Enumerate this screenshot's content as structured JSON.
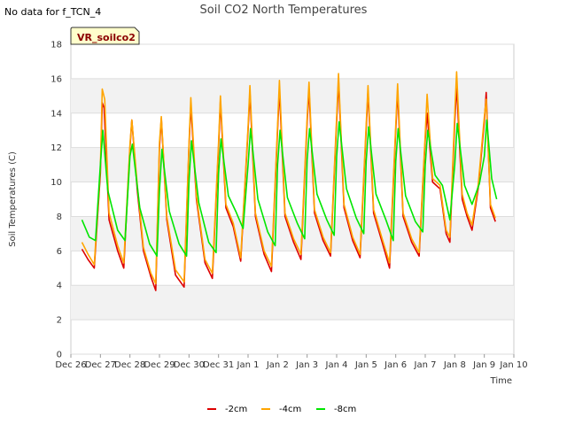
{
  "no_data_note": "No data for f_TCN_4",
  "chart_data": {
    "type": "line",
    "title": "Soil CO2 North Temperatures",
    "xlabel": "Time",
    "ylabel": "Soil Temperatures (C)",
    "ylim": [
      0,
      18
    ],
    "yticks": [
      0,
      2,
      4,
      6,
      8,
      10,
      12,
      14,
      16,
      18
    ],
    "xlim": [
      "2023-12-26",
      "2024-01-10"
    ],
    "xticks": [
      "Dec 26",
      "Dec 27",
      "Dec 28",
      "Dec 29",
      "Dec 30",
      "Dec 31",
      "Jan 1",
      "Jan 2",
      "Jan 3",
      "Jan 4",
      "Jan 5",
      "Jan 6",
      "Jan 7",
      "Jan 8",
      "Jan 9",
      "Jan 10"
    ],
    "site_label": "VR_soilco2",
    "grid": "horizontal bands",
    "legend_position": "bottom-center",
    "series": [
      {
        "name": "-2cm",
        "color": "#dd0000",
        "points": [
          [
            "2023-12-26 09:00",
            6.1
          ],
          [
            "2023-12-26 14:00",
            5.5
          ],
          [
            "2023-12-26 19:00",
            5.0
          ],
          [
            "2023-12-27 00:00",
            10.5
          ],
          [
            "2023-12-27 01:30",
            14.6
          ],
          [
            "2023-12-27 03:00",
            14.3
          ],
          [
            "2023-12-27 07:00",
            7.8
          ],
          [
            "2023-12-27 14:00",
            6.0
          ],
          [
            "2023-12-27 19:00",
            5.0
          ],
          [
            "2023-12-28 00:00",
            12.0
          ],
          [
            "2023-12-28 01:30",
            13.6
          ],
          [
            "2023-12-28 06:00",
            9.5
          ],
          [
            "2023-12-28 11:00",
            6.0
          ],
          [
            "2023-12-28 17:00",
            4.5
          ],
          [
            "2023-12-28 21:00",
            3.7
          ],
          [
            "2023-12-29 00:00",
            12.0
          ],
          [
            "2023-12-29 01:30",
            13.7
          ],
          [
            "2023-12-29 06:00",
            7.8
          ],
          [
            "2023-12-29 13:00",
            4.6
          ],
          [
            "2023-12-29 20:00",
            3.9
          ],
          [
            "2023-12-30 00:00",
            12.0
          ],
          [
            "2023-12-30 01:30",
            14.5
          ],
          [
            "2023-12-30 06:00",
            9.0
          ],
          [
            "2023-12-30 13:00",
            5.3
          ],
          [
            "2023-12-30 19:00",
            4.4
          ],
          [
            "2023-12-31 00:00",
            12.0
          ],
          [
            "2023-12-31 01:30",
            14.7
          ],
          [
            "2023-12-31 06:00",
            8.5
          ],
          [
            "2023-12-31 12:00",
            7.4
          ],
          [
            "2023-12-31 18:00",
            5.4
          ],
          [
            "2024-01-01 00:00",
            13.0
          ],
          [
            "2024-01-01 01:30",
            15.2
          ],
          [
            "2024-01-01 06:00",
            8.0
          ],
          [
            "2024-01-01 13:00",
            5.8
          ],
          [
            "2024-01-01 19:00",
            4.8
          ],
          [
            "2024-01-02 00:00",
            13.0
          ],
          [
            "2024-01-02 01:30",
            15.4
          ],
          [
            "2024-01-02 06:00",
            8.0
          ],
          [
            "2024-01-02 13:00",
            6.5
          ],
          [
            "2024-01-02 19:00",
            5.5
          ],
          [
            "2024-01-03 00:00",
            13.5
          ],
          [
            "2024-01-03 01:30",
            15.4
          ],
          [
            "2024-01-03 06:00",
            8.2
          ],
          [
            "2024-01-03 13:00",
            6.6
          ],
          [
            "2024-01-03 19:00",
            5.7
          ],
          [
            "2024-01-04 00:00",
            13.5
          ],
          [
            "2024-01-04 01:30",
            15.9
          ],
          [
            "2024-01-04 06:00",
            8.5
          ],
          [
            "2024-01-04 13:00",
            6.6
          ],
          [
            "2024-01-04 19:00",
            5.6
          ],
          [
            "2024-01-05 00:00",
            13.0
          ],
          [
            "2024-01-05 01:30",
            15.3
          ],
          [
            "2024-01-05 06:00",
            8.2
          ],
          [
            "2024-01-05 13:00",
            6.5
          ],
          [
            "2024-01-05 19:00",
            5.0
          ],
          [
            "2024-01-06 00:00",
            13.0
          ],
          [
            "2024-01-06 01:30",
            15.3
          ],
          [
            "2024-01-06 06:00",
            8.0
          ],
          [
            "2024-01-06 13:00",
            6.5
          ],
          [
            "2024-01-06 19:00",
            5.7
          ],
          [
            "2024-01-07 00:00",
            12.5
          ],
          [
            "2024-01-07 01:30",
            14.0
          ],
          [
            "2024-01-07 06:00",
            10.0
          ],
          [
            "2024-01-07 12:00",
            9.6
          ],
          [
            "2024-01-07 17:00",
            7.0
          ],
          [
            "2024-01-07 20:00",
            6.5
          ],
          [
            "2024-01-08 00:00",
            13.5
          ],
          [
            "2024-01-08 01:30",
            15.6
          ],
          [
            "2024-01-08 06:00",
            9.0
          ],
          [
            "2024-01-08 10:00",
            8.0
          ],
          [
            "2024-01-08 14:00",
            7.2
          ],
          [
            "2024-01-08 19:00",
            9.6
          ],
          [
            "2024-01-09 00:00",
            13.5
          ],
          [
            "2024-01-09 01:30",
            15.2
          ],
          [
            "2024-01-09 05:00",
            8.5
          ],
          [
            "2024-01-09 09:00",
            7.7
          ]
        ]
      },
      {
        "name": "-4cm",
        "color": "#ffa500",
        "points": [
          [
            "2023-12-26 09:00",
            6.5
          ],
          [
            "2023-12-26 14:00",
            5.8
          ],
          [
            "2023-12-26 19:00",
            5.2
          ],
          [
            "2023-12-27 00:00",
            10.8
          ],
          [
            "2023-12-27 01:30",
            15.4
          ],
          [
            "2023-12-27 03:30",
            14.8
          ],
          [
            "2023-12-27 07:00",
            8.2
          ],
          [
            "2023-12-27 14:00",
            6.3
          ],
          [
            "2023-12-27 19:00",
            5.3
          ],
          [
            "2023-12-28 00:00",
            12.2
          ],
          [
            "2023-12-28 01:30",
            13.6
          ],
          [
            "2023-12-28 06:00",
            9.8
          ],
          [
            "2023-12-28 11:00",
            6.2
          ],
          [
            "2023-12-28 17:00",
            4.7
          ],
          [
            "2023-12-28 21:00",
            4.1
          ],
          [
            "2023-12-29 00:00",
            12.3
          ],
          [
            "2023-12-29 01:30",
            13.8
          ],
          [
            "2023-12-29 06:00",
            8.0
          ],
          [
            "2023-12-29 13:00",
            4.9
          ],
          [
            "2023-12-29 20:00",
            4.2
          ],
          [
            "2023-12-30 00:00",
            12.2
          ],
          [
            "2023-12-30 01:30",
            14.9
          ],
          [
            "2023-12-30 06:00",
            9.2
          ],
          [
            "2023-12-30 13:00",
            5.5
          ],
          [
            "2023-12-30 19:00",
            4.7
          ],
          [
            "2023-12-31 00:00",
            12.3
          ],
          [
            "2023-12-31 01:30",
            15.0
          ],
          [
            "2023-12-31 06:00",
            8.7
          ],
          [
            "2023-12-31 12:00",
            7.6
          ],
          [
            "2023-12-31 18:00",
            5.6
          ],
          [
            "2024-01-01 00:00",
            13.2
          ],
          [
            "2024-01-01 01:30",
            15.6
          ],
          [
            "2024-01-01 06:00",
            8.2
          ],
          [
            "2024-01-01 13:00",
            6.0
          ],
          [
            "2024-01-01 19:00",
            5.1
          ],
          [
            "2024-01-02 00:00",
            13.3
          ],
          [
            "2024-01-02 01:30",
            15.9
          ],
          [
            "2024-01-02 06:00",
            8.2
          ],
          [
            "2024-01-02 13:00",
            6.7
          ],
          [
            "2024-01-02 19:00",
            5.8
          ],
          [
            "2024-01-03 00:00",
            13.8
          ],
          [
            "2024-01-03 01:30",
            15.8
          ],
          [
            "2024-01-03 06:00",
            8.4
          ],
          [
            "2024-01-03 13:00",
            6.8
          ],
          [
            "2024-01-03 19:00",
            5.9
          ],
          [
            "2024-01-04 00:00",
            13.8
          ],
          [
            "2024-01-04 01:30",
            16.3
          ],
          [
            "2024-01-04 06:00",
            8.7
          ],
          [
            "2024-01-04 13:00",
            6.8
          ],
          [
            "2024-01-04 19:00",
            5.8
          ],
          [
            "2024-01-05 00:00",
            13.3
          ],
          [
            "2024-01-05 01:30",
            15.6
          ],
          [
            "2024-01-05 06:00",
            8.4
          ],
          [
            "2024-01-05 13:00",
            6.7
          ],
          [
            "2024-01-05 19:00",
            5.3
          ],
          [
            "2024-01-06 00:00",
            13.3
          ],
          [
            "2024-01-06 01:30",
            15.7
          ],
          [
            "2024-01-06 06:00",
            8.2
          ],
          [
            "2024-01-06 13:00",
            6.7
          ],
          [
            "2024-01-06 19:00",
            5.9
          ],
          [
            "2024-01-07 00:00",
            12.8
          ],
          [
            "2024-01-07 01:30",
            15.1
          ],
          [
            "2024-01-07 06:00",
            10.2
          ],
          [
            "2024-01-07 12:00",
            9.8
          ],
          [
            "2024-01-07 17:00",
            7.2
          ],
          [
            "2024-01-07 20:00",
            6.8
          ],
          [
            "2024-01-08 00:00",
            14.0
          ],
          [
            "2024-01-08 01:30",
            16.4
          ],
          [
            "2024-01-08 06:00",
            9.3
          ],
          [
            "2024-01-08 10:00",
            8.2
          ],
          [
            "2024-01-08 14:00",
            7.5
          ],
          [
            "2024-01-08 19:00",
            9.8
          ],
          [
            "2024-01-09 00:00",
            13.8
          ],
          [
            "2024-01-09 01:30",
            14.8
          ],
          [
            "2024-01-09 05:00",
            8.7
          ],
          [
            "2024-01-09 09:00",
            7.9
          ]
        ]
      },
      {
        "name": "-8cm",
        "color": "#00e600",
        "points": [
          [
            "2023-12-26 09:00",
            7.8
          ],
          [
            "2023-12-26 15:00",
            6.8
          ],
          [
            "2023-12-26 20:00",
            6.6
          ],
          [
            "2023-12-27 00:00",
            11.0
          ],
          [
            "2023-12-27 02:00",
            13.0
          ],
          [
            "2023-12-27 06:00",
            9.5
          ],
          [
            "2023-12-27 14:00",
            7.2
          ],
          [
            "2023-12-27 20:00",
            6.6
          ],
          [
            "2023-12-28 00:00",
            11.5
          ],
          [
            "2023-12-28 02:00",
            12.2
          ],
          [
            "2023-12-28 08:00",
            8.5
          ],
          [
            "2023-12-28 16:00",
            6.4
          ],
          [
            "2023-12-28 22:00",
            5.7
          ],
          [
            "2023-12-29 00:00",
            9.5
          ],
          [
            "2023-12-29 02:00",
            11.9
          ],
          [
            "2023-12-29 08:00",
            8.3
          ],
          [
            "2023-12-29 16:00",
            6.4
          ],
          [
            "2023-12-29 22:00",
            5.7
          ],
          [
            "2023-12-30 00:00",
            10.0
          ],
          [
            "2023-12-30 02:00",
            12.4
          ],
          [
            "2023-12-30 08:00",
            8.8
          ],
          [
            "2023-12-30 16:00",
            6.5
          ],
          [
            "2023-12-30 22:00",
            5.9
          ],
          [
            "2023-12-31 00:00",
            10.5
          ],
          [
            "2023-12-31 02:00",
            12.5
          ],
          [
            "2023-12-31 08:00",
            9.2
          ],
          [
            "2023-12-31 14:00",
            8.3
          ],
          [
            "2023-12-31 20:00",
            7.3
          ],
          [
            "2024-01-01 00:00",
            11.0
          ],
          [
            "2024-01-01 02:00",
            13.1
          ],
          [
            "2024-01-01 08:00",
            9.0
          ],
          [
            "2024-01-01 16:00",
            7.1
          ],
          [
            "2024-01-01 22:00",
            6.3
          ],
          [
            "2024-01-02 00:00",
            11.0
          ],
          [
            "2024-01-02 02:00",
            13.0
          ],
          [
            "2024-01-02 08:00",
            9.1
          ],
          [
            "2024-01-02 16:00",
            7.6
          ],
          [
            "2024-01-02 22:00",
            6.7
          ],
          [
            "2024-01-03 00:00",
            11.3
          ],
          [
            "2024-01-03 02:00",
            13.1
          ],
          [
            "2024-01-03 08:00",
            9.3
          ],
          [
            "2024-01-03 16:00",
            7.8
          ],
          [
            "2024-01-03 22:00",
            6.9
          ],
          [
            "2024-01-04 00:00",
            11.5
          ],
          [
            "2024-01-04 02:00",
            13.5
          ],
          [
            "2024-01-04 08:00",
            9.6
          ],
          [
            "2024-01-04 16:00",
            7.9
          ],
          [
            "2024-01-04 22:00",
            7.0
          ],
          [
            "2024-01-05 00:00",
            11.2
          ],
          [
            "2024-01-05 02:00",
            13.2
          ],
          [
            "2024-01-05 08:00",
            9.3
          ],
          [
            "2024-01-05 16:00",
            7.8
          ],
          [
            "2024-01-05 22:00",
            6.6
          ],
          [
            "2024-01-06 00:00",
            11.2
          ],
          [
            "2024-01-06 02:00",
            13.1
          ],
          [
            "2024-01-06 08:00",
            9.2
          ],
          [
            "2024-01-06 16:00",
            7.7
          ],
          [
            "2024-01-06 22:00",
            7.1
          ],
          [
            "2024-01-07 00:00",
            11.0
          ],
          [
            "2024-01-07 02:00",
            13.0
          ],
          [
            "2024-01-07 08:00",
            10.4
          ],
          [
            "2024-01-07 14:00",
            9.8
          ],
          [
            "2024-01-07 20:00",
            7.8
          ],
          [
            "2024-01-08 00:00",
            11.0
          ],
          [
            "2024-01-08 02:00",
            13.4
          ],
          [
            "2024-01-08 08:00",
            9.8
          ],
          [
            "2024-01-08 14:00",
            8.7
          ],
          [
            "2024-01-08 20:00",
            9.9
          ],
          [
            "2024-01-09 00:00",
            11.5
          ],
          [
            "2024-01-09 02:00",
            13.6
          ],
          [
            "2024-01-09 06:00",
            10.2
          ],
          [
            "2024-01-09 10:00",
            9.0
          ]
        ]
      }
    ]
  }
}
